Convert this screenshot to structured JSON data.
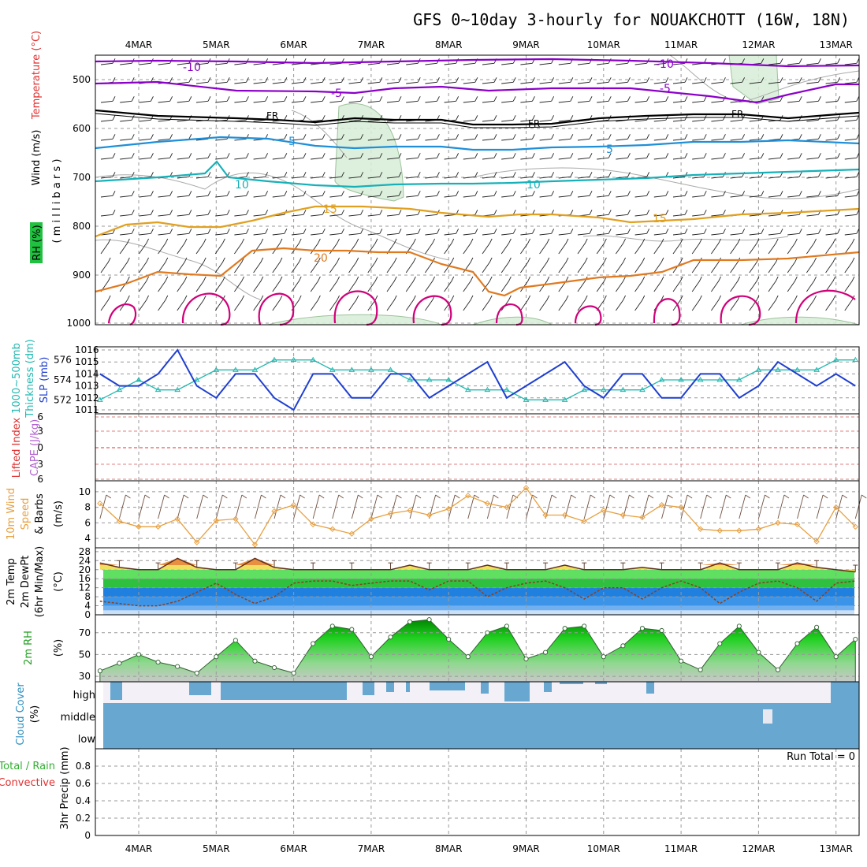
{
  "title": "GFS 0~10day 3-hourly for NOUAKCHOTT (16W, 18N)",
  "dates": [
    "4MAR",
    "5MAR",
    "6MAR",
    "7MAR",
    "8MAR",
    "9MAR",
    "10MAR",
    "11MAR",
    "12MAR",
    "13MAR"
  ],
  "colors": {
    "purple": "#8a00c8",
    "black": "#000000",
    "blue": "#1e8fd8",
    "cyan": "#18b0b8",
    "gold": "#e0a020",
    "orange": "#e07a20",
    "magenta": "#d0007a",
    "slp": "#1f3fd0",
    "thick": "#20b8b0",
    "wind10": "#e8a040",
    "rh_green": "#30c030",
    "cloud": "#68a8d0",
    "cape_red": "#e03030"
  },
  "panels": {
    "upper": {
      "ylabel_wind": "Wind (m/s)",
      "ylabel_temp": "Temperature (°C)",
      "ylabel_mb": "( m i l l i b a r s )",
      "ylabel_rh": "RH (%)",
      "yticks": [
        "500",
        "600",
        "700",
        "800",
        "900",
        "1000"
      ]
    },
    "slp": {
      "ylabel1": "1000~500mb",
      "ylabel2": "Thickness (dm)",
      "ylabel3": "SLP (mb)",
      "left_ticks": [
        "576",
        "574",
        "572"
      ],
      "right_ticks": [
        "1016",
        "1015",
        "1014",
        "1013",
        "1012",
        "1011"
      ]
    },
    "li": {
      "ylabel1": "Lifted Index",
      "ylabel2": "CAPE (J/kg)",
      "ticks": [
        "6",
        "3",
        "0",
        "3",
        "6"
      ]
    },
    "wind10": {
      "ylabel1": "10m Wind",
      "ylabel2": "Speed",
      "ylabel3": "& Barbs",
      "ylabel4": "(m/s)",
      "ticks": [
        "10",
        "8",
        "6",
        "4"
      ]
    },
    "temp2m": {
      "ylabel1": "2m Temp",
      "ylabel2": "2m DewPt",
      "ylabel3": "(6hr Min/Max)",
      "ylabel4": "(°C)",
      "ticks": [
        "28",
        "24",
        "20",
        "16",
        "12",
        "8",
        "4",
        "0"
      ]
    },
    "rh2m": {
      "ylabel1": "2m RH",
      "ylabel2": "(%)",
      "ticks": [
        "70",
        "50",
        "30"
      ]
    },
    "cloud": {
      "ylabel1": "Cloud Cover",
      "ylabel2": "(%)",
      "levels": [
        "high",
        "middle",
        "low"
      ]
    },
    "precip": {
      "ylabel1": "Total / Rain",
      "ylabel2": "Convective",
      "ylabel3": "3hr Precip (mm)",
      "ticks": [
        "0.8",
        "0.6",
        "0.4",
        "0.2",
        "0"
      ],
      "run_total": "Run Total = 0"
    }
  },
  "contour_labels": {
    "m10": "-10",
    "m5": "-5",
    "fr": "FR",
    "p5": "5",
    "p10": "10",
    "p15": "15",
    "p20": "20"
  },
  "chart_data": [
    {
      "type": "line",
      "title": "SLP (mb)",
      "x_days": [
        3.5,
        3.75,
        4,
        4.25,
        4.5,
        4.75,
        5,
        5.25,
        5.5,
        5.75,
        6,
        6.25,
        6.5,
        6.75,
        7,
        7.25,
        7.5,
        7.75,
        8,
        8.25,
        8.5,
        8.75,
        9,
        9.25,
        9.5,
        9.75,
        10,
        10.25,
        10.5,
        10.75,
        11,
        11.25,
        11.5,
        11.75,
        12,
        12.25,
        12.5,
        12.75,
        13,
        13.25
      ],
      "series": [
        {
          "name": "SLP (mb)",
          "values": [
            1014,
            1013,
            1013,
            1014,
            1016,
            1013,
            1012,
            1014,
            1014,
            1012,
            1011,
            1014,
            1014,
            1012,
            1012,
            1014,
            1014,
            1012,
            1013,
            1014,
            1015,
            1012,
            1013,
            1014,
            1015,
            1013,
            1012,
            1014,
            1014,
            1012,
            1012,
            1014,
            1014,
            1012,
            1013,
            1015,
            1014,
            1013,
            1014,
            1013
          ]
        },
        {
          "name": "1000~500mb Thickness (dm)",
          "values": [
            572,
            573,
            574,
            573,
            573,
            574,
            575,
            575,
            575,
            576,
            576,
            576,
            575,
            575,
            575,
            575,
            574,
            574,
            574,
            573,
            573,
            573,
            572,
            572,
            572,
            573,
            573,
            573,
            573,
            574,
            574,
            574,
            574,
            574,
            575,
            575,
            575,
            575,
            576,
            576
          ]
        }
      ],
      "ylim_slp": [
        1011,
        1016
      ],
      "ylim_thick": [
        571,
        577
      ]
    },
    {
      "type": "line",
      "title": "10m Wind Speed (m/s)",
      "x_days": [
        3.5,
        3.75,
        4,
        4.25,
        4.5,
        4.75,
        5,
        5.25,
        5.5,
        5.75,
        6,
        6.25,
        6.5,
        6.75,
        7,
        7.25,
        7.5,
        7.75,
        8,
        8.25,
        8.5,
        8.75,
        9,
        9.25,
        9.5,
        9.75,
        10,
        10.25,
        10.5,
        10.75,
        11,
        11.25,
        11.5,
        11.75,
        12,
        12.25,
        12.5,
        12.75,
        13,
        13.25
      ],
      "series": [
        {
          "name": "10m Wind Speed",
          "values": [
            8.5,
            6.2,
            5.5,
            5.5,
            6.5,
            3.5,
            6.3,
            6.5,
            3.2,
            7.5,
            8.3,
            5.8,
            5.2,
            4.6,
            6.5,
            7.2,
            7.6,
            7.0,
            7.8,
            9.5,
            8.5,
            8.0,
            10.5,
            7.0,
            7.0,
            6.2,
            7.6,
            7.0,
            6.7,
            8.3,
            8.0,
            5.2,
            5.0,
            5.0,
            5.2,
            6.0,
            5.8,
            3.6,
            8.0,
            5.5
          ]
        }
      ],
      "ylim": [
        3,
        11
      ]
    },
    {
      "type": "line",
      "title": "2m Temp / DewPt (°C)",
      "x_days": [
        3.5,
        3.75,
        4,
        4.25,
        4.5,
        4.75,
        5,
        5.25,
        5.5,
        5.75,
        6,
        6.25,
        6.5,
        6.75,
        7,
        7.25,
        7.5,
        7.75,
        8,
        8.25,
        8.5,
        8.75,
        9,
        9.25,
        9.5,
        9.75,
        10,
        10.25,
        10.5,
        10.75,
        11,
        11.25,
        11.5,
        11.75,
        12,
        12.25,
        12.5,
        12.75,
        13,
        13.25
      ],
      "series": [
        {
          "name": "2m Temp",
          "values": [
            23,
            21,
            20,
            20,
            25,
            21,
            20,
            20,
            25,
            21,
            20,
            20,
            20,
            20,
            20,
            20,
            22,
            20,
            20,
            20,
            22,
            20,
            20,
            20,
            22,
            20,
            20,
            20,
            21,
            20,
            20,
            20,
            23,
            20,
            20,
            20,
            23,
            21,
            20,
            19
          ]
        },
        {
          "name": "2m DewPt",
          "values": [
            6,
            5,
            4,
            4,
            6,
            10,
            14,
            9,
            5,
            8,
            14,
            15,
            15,
            13,
            14,
            15,
            15,
            11,
            15,
            15,
            8,
            12,
            14,
            15,
            12,
            7,
            12,
            12,
            7,
            12,
            15,
            12,
            5,
            10,
            14,
            15,
            12,
            6,
            14,
            15
          ]
        }
      ],
      "ylim": [
        0,
        29
      ]
    },
    {
      "type": "area",
      "title": "2m RH (%)",
      "x_days": [
        3.5,
        3.75,
        4,
        4.25,
        4.5,
        4.75,
        5,
        5.25,
        5.5,
        5.75,
        6,
        6.25,
        6.5,
        6.75,
        7,
        7.25,
        7.5,
        7.75,
        8,
        8.25,
        8.5,
        8.75,
        9,
        9.25,
        9.5,
        9.75,
        10,
        10.25,
        10.5,
        10.75,
        11,
        11.25,
        11.5,
        11.75,
        12,
        12.25,
        12.5,
        12.75,
        13,
        13.25
      ],
      "series": [
        {
          "name": "2m RH",
          "values": [
            35,
            42,
            50,
            43,
            39,
            33,
            48,
            63,
            44,
            38,
            33,
            60,
            76,
            73,
            48,
            66,
            80,
            82,
            64,
            48,
            70,
            76,
            46,
            52,
            74,
            76,
            48,
            58,
            74,
            72,
            44,
            36,
            60,
            76,
            52,
            36,
            60,
            75,
            48,
            64
          ]
        }
      ],
      "ylim": [
        25,
        85
      ]
    },
    {
      "type": "bar",
      "title": "3hr Precip (mm)",
      "ylim": [
        0,
        1
      ],
      "values": []
    }
  ]
}
